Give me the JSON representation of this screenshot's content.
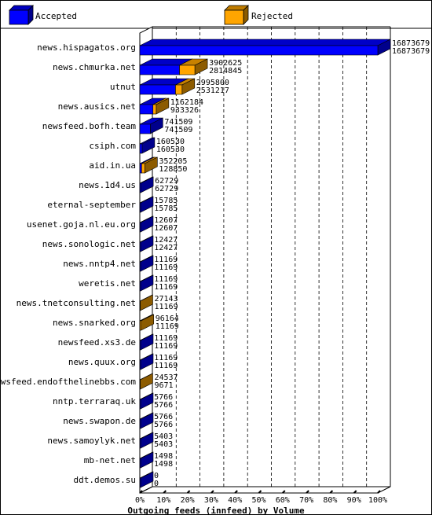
{
  "chart_data": {
    "type": "bar",
    "orientation": "horizontal",
    "title": "",
    "xlabel": "Outgoing feeds (innfeed) by Volume",
    "ylabel": "",
    "xlim": [
      0,
      100
    ],
    "x_ticks": [
      "0%",
      "10%",
      "20%",
      "30%",
      "40%",
      "50%",
      "60%",
      "70%",
      "80%",
      "90%",
      "100%"
    ],
    "grid": true,
    "legend_position": "top",
    "max_value": 16873679,
    "categories": [
      "news.hispagatos.org",
      "news.chmurka.net",
      "utnut",
      "news.ausics.net",
      "newsfeed.bofh.team",
      "csiph.com",
      "aid.in.ua",
      "news.1d4.us",
      "eternal-september",
      "usenet.goja.nl.eu.org",
      "news.sonologic.net",
      "news.nntp4.net",
      "weretis.net",
      "news.tnetconsulting.net",
      "news.snarked.org",
      "newsfeed.xs3.de",
      "news.quux.org",
      "newsfeed.endofthelinebbs.com",
      "nntp.terraraq.uk",
      "news.swapon.de",
      "news.samoylyk.net",
      "mb-net.net",
      "ddt.demos.su"
    ],
    "series": [
      {
        "name": "Accepted",
        "color": "#0000ff",
        "values": [
          16873679,
          3902625,
          2995800,
          1162184,
          741509,
          160530,
          352205,
          62729,
          15785,
          12607,
          12427,
          11169,
          11169,
          27143,
          96164,
          11169,
          11169,
          24537,
          5766,
          5766,
          5403,
          1498,
          0
        ]
      },
      {
        "name": "Rejected",
        "color": "#ffa500",
        "values": [
          16873679,
          2814845,
          2531217,
          933326,
          741509,
          160530,
          128850,
          62729,
          15785,
          12607,
          12427,
          11169,
          11169,
          11169,
          11169,
          11169,
          11169,
          9671,
          5766,
          5766,
          5403,
          1498,
          0
        ]
      }
    ],
    "value_labels": [
      [
        "16873679",
        "16873679"
      ],
      [
        "3902625",
        "2814845"
      ],
      [
        "2995800",
        "2531217"
      ],
      [
        "1162184",
        "933326"
      ],
      [
        "741509",
        "741509"
      ],
      [
        "160530",
        "160530"
      ],
      [
        "352205",
        "128850"
      ],
      [
        "62729",
        "62729"
      ],
      [
        "15785",
        "15785"
      ],
      [
        "12607",
        "12607"
      ],
      [
        "12427",
        "12427"
      ],
      [
        "11169",
        "11169"
      ],
      [
        "11169",
        "11169"
      ],
      [
        "27143",
        "11169"
      ],
      [
        "96164",
        "11169"
      ],
      [
        "11169",
        "11169"
      ],
      [
        "11169",
        "11169"
      ],
      [
        "24537",
        "9671"
      ],
      [
        "5766",
        "5766"
      ],
      [
        "5766",
        "5766"
      ],
      [
        "5403",
        "5403"
      ],
      [
        "1498",
        "1498"
      ],
      [
        "0",
        "0"
      ]
    ]
  }
}
